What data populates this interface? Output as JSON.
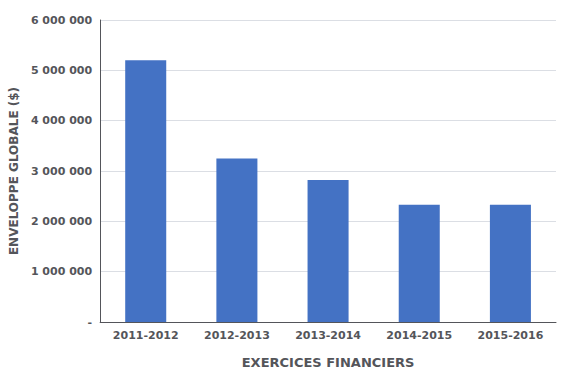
{
  "chart_data": {
    "type": "bar",
    "categories": [
      "2011-2012",
      "2012-2013",
      "2013-2014",
      "2014-2015",
      "2015-2016"
    ],
    "values": [
      5200000,
      3250000,
      2820000,
      2330000,
      2330000
    ],
    "color": "#4472C4",
    "xlabel": "EXERCICES FINANCIERS",
    "ylabel": "ENVELOPPE GLOBALE ($)",
    "ylim": [
      0,
      6000000
    ],
    "yticks": [
      {
        "value": 0,
        "label": "-"
      },
      {
        "value": 1000000,
        "label": "1 000 000"
      },
      {
        "value": 2000000,
        "label": "2 000 000"
      },
      {
        "value": 3000000,
        "label": "3 000 000"
      },
      {
        "value": 4000000,
        "label": "4 000 000"
      },
      {
        "value": 5000000,
        "label": "5 000 000"
      },
      {
        "value": 6000000,
        "label": "6 000 000"
      }
    ],
    "grid": true
  }
}
